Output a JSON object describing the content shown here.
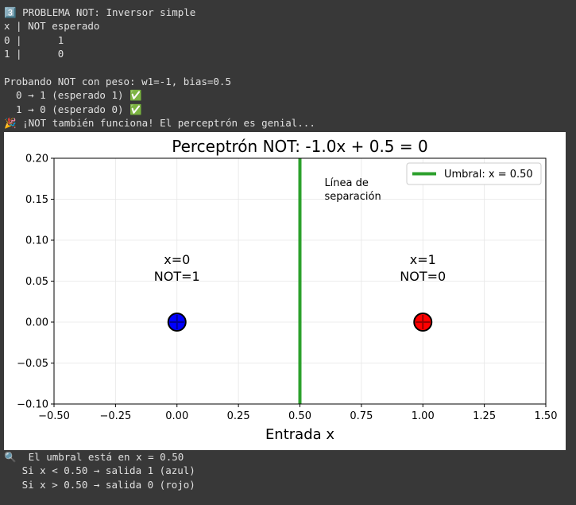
{
  "header_block": [
    "3️⃣ PROBLEMA NOT: Inversor simple",
    "x | NOT esperado",
    "0 |      1",
    "1 |      0"
  ],
  "test_block": [
    "Probando NOT con peso: w1=-1, bias=0.5",
    "  0 → 1 (esperado 1) ✅",
    "  1 → 0 (esperado 0) ✅",
    "🎉 ¡NOT también funciona! El perceptrón es genial..."
  ],
  "chart_data": {
    "type": "scatter",
    "title": "Perceptrón NOT: -1.0x + 0.5 = 0",
    "x_label": "Entrada x",
    "series": [
      {
        "color": "#0000ff",
        "x": [
          0
        ],
        "values": [
          0
        ]
      },
      {
        "color": "#ff0000",
        "x": [
          1
        ],
        "values": [
          0
        ]
      }
    ],
    "threshold": {
      "name": "Umbral: x = 0.50",
      "x": 0.5,
      "color": "#2ca02c"
    },
    "legend": "upper right",
    "grid": true,
    "annotations": [
      {
        "text": "x=0\nNOT=1",
        "x": 0,
        "y": 0.066,
        "align": "center"
      },
      {
        "text": "x=1\nNOT=0",
        "x": 1,
        "y": 0.066,
        "align": "center"
      },
      {
        "text": "Línea de\nseparación",
        "x": 0.6,
        "y": 0.162,
        "align": "left"
      }
    ],
    "xlim": [
      -0.5,
      1.5
    ],
    "ylim": [
      -0.1,
      0.2
    ],
    "xticks": [
      {
        "value": -0.5,
        "label": "−0.50"
      },
      {
        "value": -0.25,
        "label": "−0.25"
      },
      {
        "value": 0,
        "label": "0.00"
      },
      {
        "value": 0.25,
        "label": "0.25"
      },
      {
        "value": 0.5,
        "label": "0.50"
      },
      {
        "value": 0.75,
        "label": "0.75"
      },
      {
        "value": 1,
        "label": "1.00"
      },
      {
        "value": 1.25,
        "label": "1.25"
      },
      {
        "value": 1.5,
        "label": "1.50"
      }
    ],
    "yticks": [
      {
        "value": -0.1,
        "label": "−0.10"
      },
      {
        "value": -0.05,
        "label": "−0.05"
      },
      {
        "value": 0,
        "label": "0.00"
      },
      {
        "value": 0.05,
        "label": "0.05"
      },
      {
        "value": 0.1,
        "label": "0.10"
      },
      {
        "value": 0.15,
        "label": "0.15"
      },
      {
        "value": 0.2,
        "label": "0.20"
      }
    ]
  },
  "footer_block": [
    "🔍  El umbral está en x = 0.50",
    "   Si x < 0.50 → salida 1 (azul)",
    "   Si x > 0.50 → salida 0 (rojo)"
  ]
}
